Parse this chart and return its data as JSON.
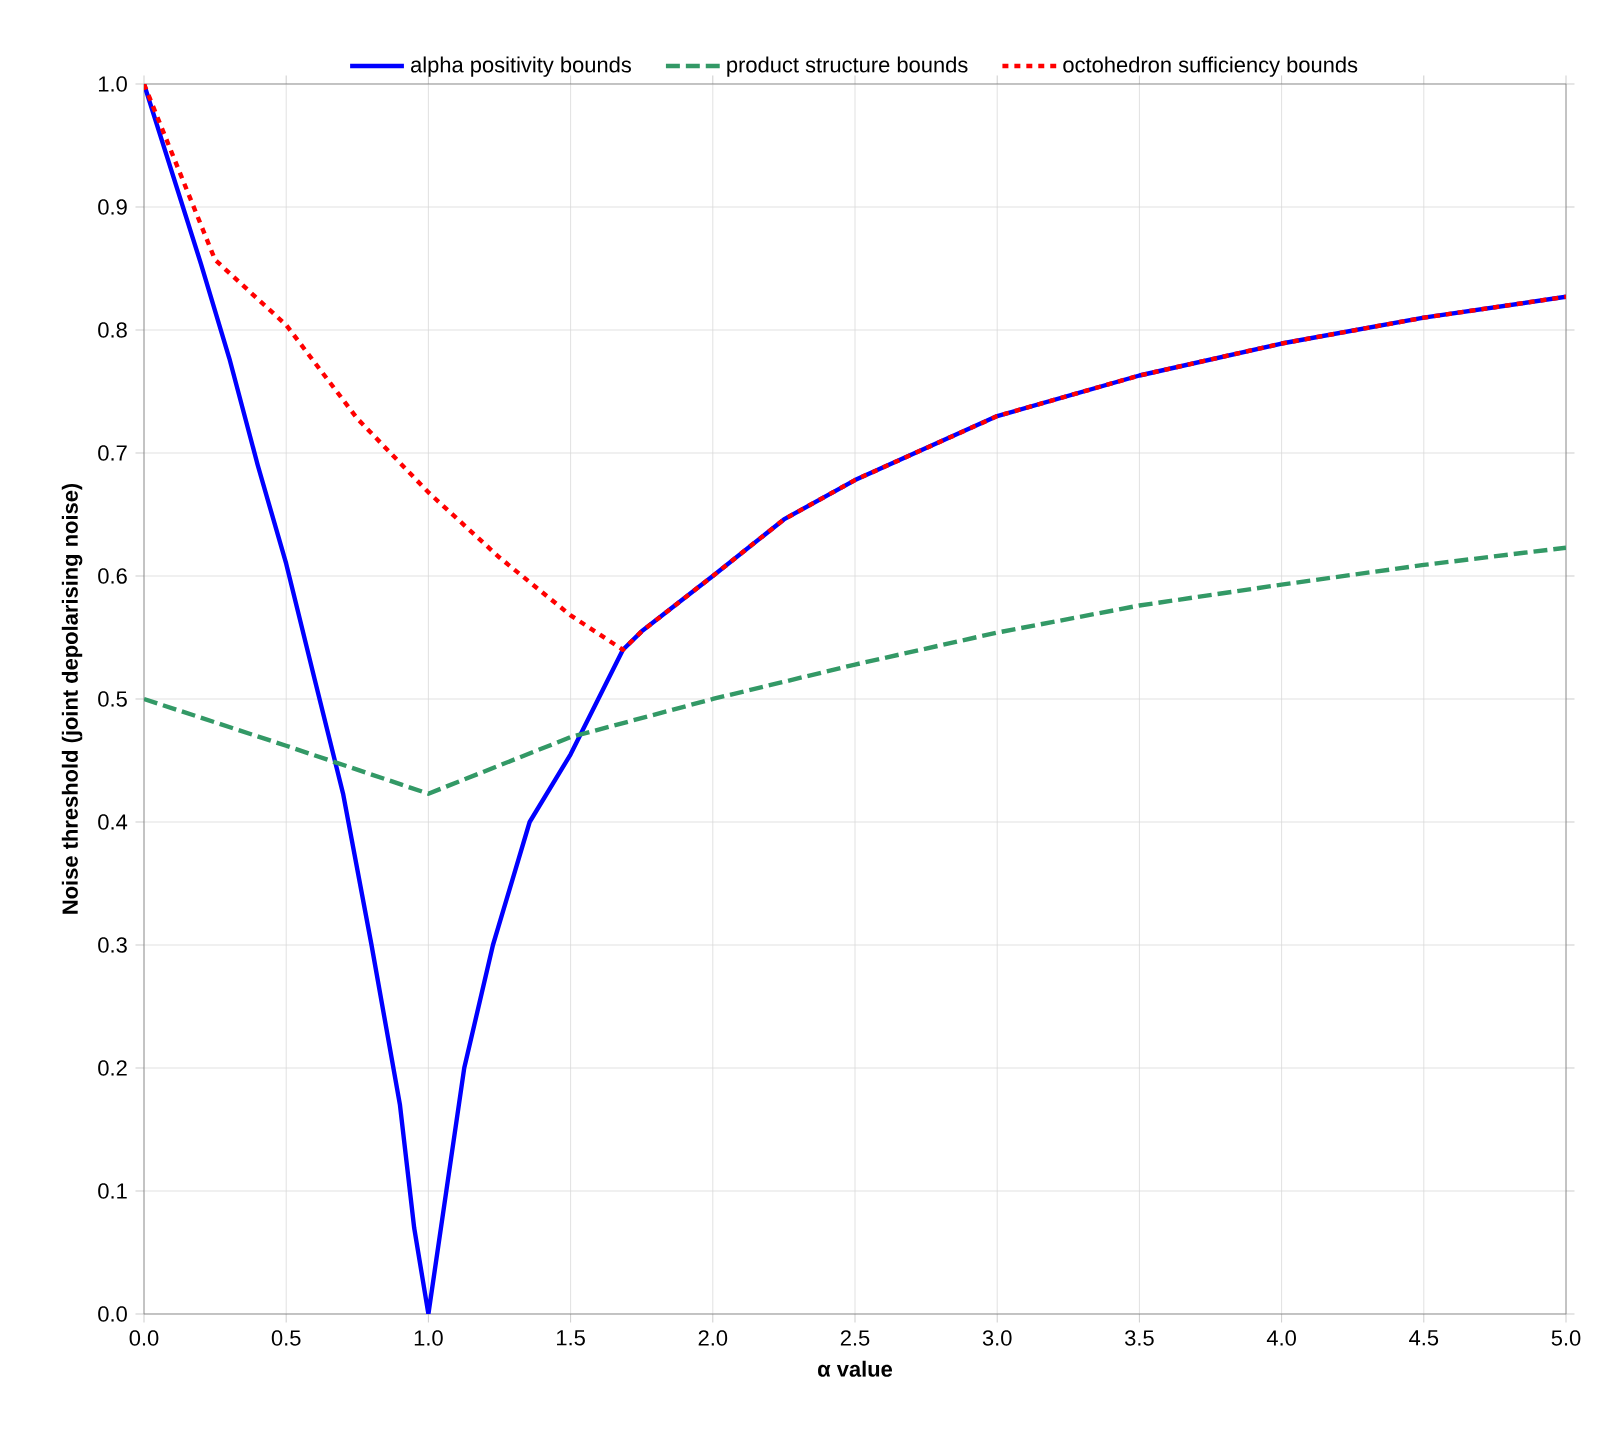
{
  "chart_data": {
    "type": "line",
    "xlabel": "α value",
    "ylabel": "Noise threshold (joint depolarising noise)",
    "xlim": [
      0,
      5
    ],
    "ylim": [
      0,
      1
    ],
    "xticks": [
      {
        "value": 0,
        "label": "0.0"
      },
      0.5,
      {
        "value": 1,
        "label": "1.0"
      },
      1.5,
      {
        "value": 2,
        "label": "2.0"
      },
      2.5,
      {
        "value": 3,
        "label": "3.0"
      },
      3.5,
      {
        "value": 4,
        "label": "4.0"
      },
      4.5,
      {
        "value": 5,
        "label": "5.0"
      }
    ],
    "yticks": [
      {
        "value": 0,
        "label": "0.0"
      },
      0.1,
      0.2,
      0.3,
      0.4,
      0.5,
      0.6,
      0.7,
      0.8,
      0.9,
      {
        "value": 1,
        "label": "1.0"
      }
    ],
    "grid": true,
    "legend": "top",
    "series": [
      {
        "name": "alpha positivity bounds",
        "color": "#0000ff",
        "line_style": "solid",
        "x": [
          0,
          0.1,
          0.2,
          0.3,
          0.4,
          0.5,
          0.6,
          0.7,
          0.8,
          0.9,
          0.95,
          1.0,
          1.063,
          1.126,
          1.227,
          1.356,
          1.5,
          1.684,
          1.75,
          2.0,
          2.25,
          2.5,
          3.0,
          3.5,
          4.0,
          4.5,
          5.0
        ],
        "values": [
          1,
          0.927,
          0.854,
          0.777,
          0.69,
          0.61,
          0.516,
          0.423,
          0.3,
          0.17,
          0.07,
          0,
          0.1,
          0.2,
          0.3,
          0.4,
          0.455,
          0.54,
          0.555,
          0.6,
          0.646,
          0.678,
          0.73,
          0.763,
          0.789,
          0.81,
          0.827
        ]
      },
      {
        "name": "product structure bounds",
        "color": "#339966",
        "line_style": "dashed",
        "x": [
          0,
          0.5,
          1.0,
          1.5,
          2.0,
          2.5,
          3.0,
          3.5,
          4.0,
          4.5,
          5.0
        ],
        "values": [
          0.5,
          0.462,
          0.423,
          0.469,
          0.5,
          0.528,
          0.554,
          0.576,
          0.593,
          0.609,
          0.623
        ]
      },
      {
        "name": "octohedron sufficiency bounds",
        "color": "#ff0000",
        "line_style": "dotted",
        "x": [
          0,
          0.25,
          0.5,
          0.75,
          1.0,
          1.25,
          1.5,
          1.684,
          1.75,
          2.0,
          2.25,
          2.5,
          3.0,
          3.5,
          4.0,
          4.5,
          5.0
        ],
        "values": [
          1,
          0.857,
          0.804,
          0.728,
          0.668,
          0.615,
          0.568,
          0.54,
          0.555,
          0.6,
          0.646,
          0.678,
          0.73,
          0.763,
          0.789,
          0.81,
          0.827
        ]
      }
    ]
  }
}
